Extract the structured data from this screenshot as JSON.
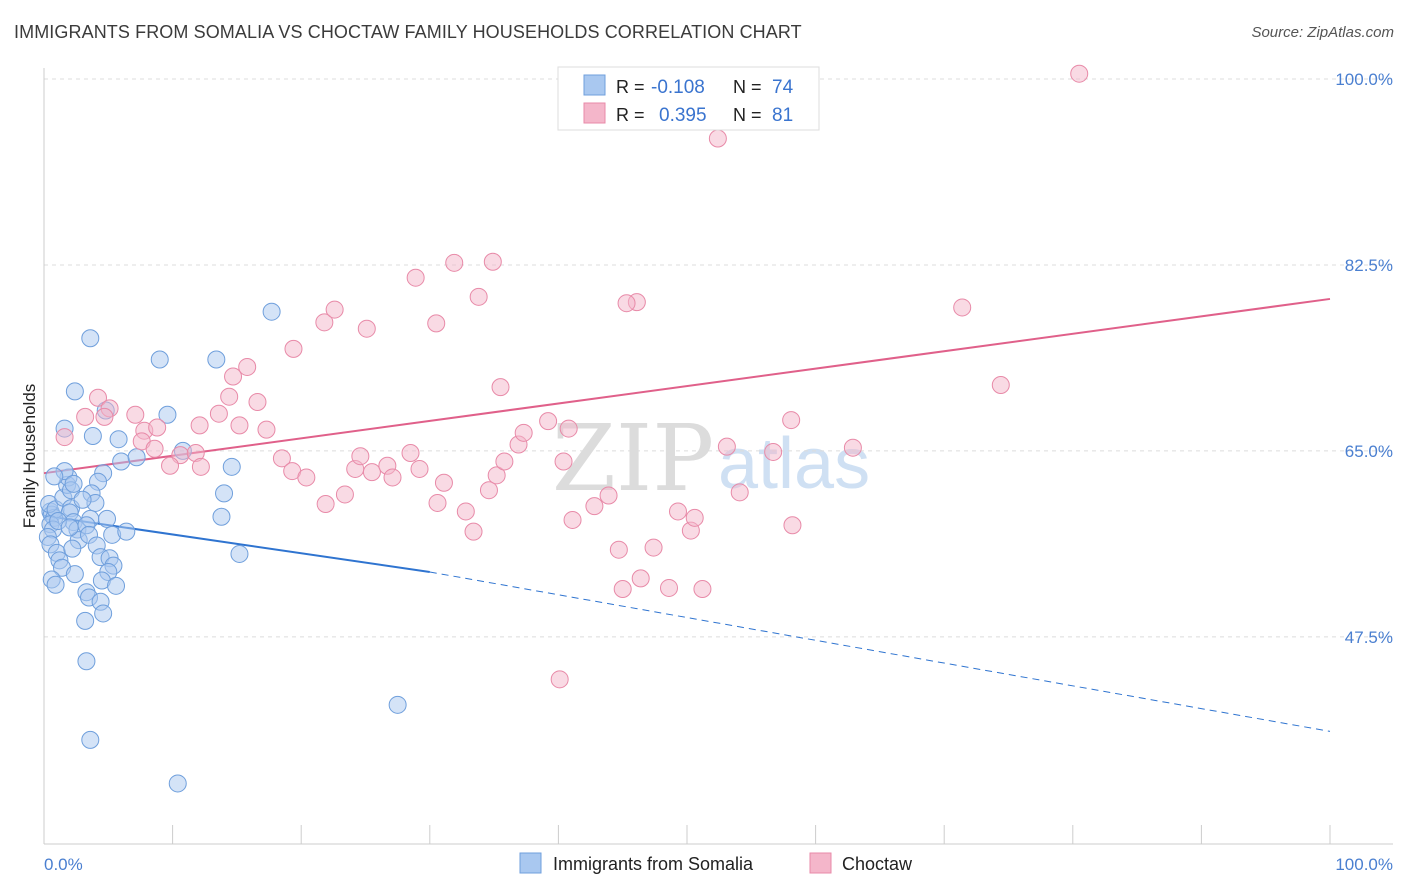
{
  "title": "IMMIGRANTS FROM SOMALIA VS CHOCTAW FAMILY HOUSEHOLDS CORRELATION CHART",
  "source": "Source: ZipAtlas.com",
  "watermark": {
    "zip": "ZIP",
    "atlas": "atlas"
  },
  "legend": {
    "r_label": "R =",
    "n_label": "N =",
    "rows": [
      {
        "r": "-0.108",
        "n": "74",
        "color": "#a9c8f0"
      },
      {
        "r": "0.395",
        "n": "81",
        "color": "#f4b6ca"
      }
    ]
  },
  "chart_data": {
    "type": "scatter",
    "xlabel": "",
    "ylabel": "Family Households",
    "xlim": [
      0,
      100
    ],
    "ylim": [
      28,
      100
    ],
    "x_tick_labels": [
      "0.0%",
      "100.0%"
    ],
    "y_ticks": [
      {
        "value": 100.0,
        "label": "100.0%"
      },
      {
        "value": 82.5,
        "label": "82.5%"
      },
      {
        "value": 65.0,
        "label": "65.0%"
      },
      {
        "value": 47.5,
        "label": "47.5%"
      }
    ],
    "grid": true,
    "series": [
      {
        "name": "Immigrants from Somalia",
        "color": "#a9c8f0",
        "stroke": "#6f9fdc",
        "line_color": "#2f74d0",
        "trend": {
          "x0": 0,
          "y0": 58.9,
          "x1": 30,
          "y1": 53.6,
          "dash_to_x": 100,
          "dash_to_y": 38.6
        },
        "points": [
          [
            0.5,
            59.3
          ],
          [
            0.6,
            59.0
          ],
          [
            0.8,
            58.7
          ],
          [
            0.4,
            60.0
          ],
          [
            0.9,
            59.5
          ],
          [
            0.5,
            58.1
          ],
          [
            0.7,
            57.6
          ],
          [
            0.3,
            56.9
          ],
          [
            0.5,
            56.2
          ],
          [
            1.0,
            55.4
          ],
          [
            1.2,
            54.7
          ],
          [
            1.4,
            54.0
          ],
          [
            0.6,
            52.9
          ],
          [
            0.9,
            52.4
          ],
          [
            1.5,
            60.6
          ],
          [
            1.8,
            61.8
          ],
          [
            1.9,
            62.5
          ],
          [
            1.6,
            63.1
          ],
          [
            2.1,
            61.3
          ],
          [
            2.3,
            61.9
          ],
          [
            2.1,
            59.6
          ],
          [
            2.0,
            59.2
          ],
          [
            2.3,
            58.3
          ],
          [
            2.6,
            57.6
          ],
          [
            2.7,
            56.6
          ],
          [
            2.2,
            55.8
          ],
          [
            2.4,
            53.4
          ],
          [
            1.6,
            67.1
          ],
          [
            2.4,
            70.6
          ],
          [
            3.6,
            75.6
          ],
          [
            4.8,
            68.8
          ],
          [
            3.8,
            66.4
          ],
          [
            6.0,
            64.0
          ],
          [
            7.2,
            64.4
          ],
          [
            5.8,
            66.1
          ],
          [
            4.6,
            62.9
          ],
          [
            4.2,
            62.1
          ],
          [
            3.7,
            61.0
          ],
          [
            4.0,
            60.1
          ],
          [
            3.6,
            58.6
          ],
          [
            3.3,
            58.0
          ],
          [
            3.5,
            57.1
          ],
          [
            4.9,
            58.6
          ],
          [
            5.3,
            57.1
          ],
          [
            6.4,
            57.4
          ],
          [
            4.1,
            56.1
          ],
          [
            4.4,
            55.0
          ],
          [
            5.1,
            54.9
          ],
          [
            5.4,
            54.2
          ],
          [
            5.0,
            53.6
          ],
          [
            4.5,
            52.8
          ],
          [
            5.6,
            52.3
          ],
          [
            3.3,
            51.7
          ],
          [
            3.5,
            51.2
          ],
          [
            4.4,
            50.8
          ],
          [
            4.6,
            49.7
          ],
          [
            3.2,
            49.0
          ],
          [
            3.3,
            45.2
          ],
          [
            3.6,
            37.8
          ],
          [
            9.0,
            73.6
          ],
          [
            9.6,
            68.4
          ],
          [
            10.8,
            65.0
          ],
          [
            13.4,
            73.6
          ],
          [
            14.6,
            63.5
          ],
          [
            14.0,
            61.0
          ],
          [
            13.8,
            58.8
          ],
          [
            15.2,
            55.3
          ],
          [
            17.7,
            78.1
          ],
          [
            27.5,
            41.1
          ],
          [
            10.4,
            33.7
          ],
          [
            0.8,
            62.6
          ],
          [
            1.1,
            58.4
          ],
          [
            2.0,
            57.8
          ],
          [
            3.0,
            60.4
          ]
        ]
      },
      {
        "name": "Choctaw",
        "color": "#f4b6ca",
        "stroke": "#e88aa8",
        "line_color": "#e0608a",
        "trend": {
          "x0": 0,
          "y0": 62.9,
          "x1": 100,
          "y1": 79.3
        },
        "points": [
          [
            1.6,
            66.3
          ],
          [
            3.2,
            68.2
          ],
          [
            4.2,
            70.0
          ],
          [
            5.1,
            69.0
          ],
          [
            4.7,
            68.2
          ],
          [
            7.1,
            68.4
          ],
          [
            7.8,
            66.9
          ],
          [
            8.8,
            67.2
          ],
          [
            7.6,
            65.9
          ],
          [
            8.6,
            65.2
          ],
          [
            10.6,
            64.6
          ],
          [
            9.8,
            63.6
          ],
          [
            11.8,
            64.8
          ],
          [
            12.2,
            63.5
          ],
          [
            13.6,
            68.5
          ],
          [
            14.4,
            70.1
          ],
          [
            15.2,
            67.4
          ],
          [
            16.6,
            69.6
          ],
          [
            17.3,
            67.0
          ],
          [
            18.5,
            64.3
          ],
          [
            19.3,
            63.1
          ],
          [
            20.4,
            62.5
          ],
          [
            21.9,
            60.0
          ],
          [
            23.4,
            60.9
          ],
          [
            24.2,
            63.3
          ],
          [
            24.6,
            64.5
          ],
          [
            25.5,
            63.0
          ],
          [
            26.7,
            63.6
          ],
          [
            27.1,
            62.5
          ],
          [
            28.5,
            64.8
          ],
          [
            29.2,
            63.3
          ],
          [
            30.6,
            60.1
          ],
          [
            31.1,
            62.0
          ],
          [
            32.8,
            59.3
          ],
          [
            33.4,
            57.4
          ],
          [
            34.6,
            61.3
          ],
          [
            35.2,
            62.7
          ],
          [
            35.8,
            64.0
          ],
          [
            36.9,
            65.6
          ],
          [
            37.3,
            66.7
          ],
          [
            39.2,
            67.8
          ],
          [
            40.4,
            64.0
          ],
          [
            41.1,
            58.5
          ],
          [
            42.8,
            59.8
          ],
          [
            43.9,
            60.8
          ],
          [
            44.7,
            55.7
          ],
          [
            45.0,
            52.0
          ],
          [
            46.4,
            53.0
          ],
          [
            47.4,
            55.9
          ],
          [
            48.6,
            52.1
          ],
          [
            49.3,
            59.3
          ],
          [
            50.3,
            57.5
          ],
          [
            50.6,
            58.7
          ],
          [
            51.2,
            52.0
          ],
          [
            53.1,
            65.4
          ],
          [
            56.7,
            64.9
          ],
          [
            54.1,
            61.1
          ],
          [
            58.2,
            58.0
          ],
          [
            62.9,
            65.3
          ],
          [
            12.1,
            67.4
          ],
          [
            14.7,
            72.0
          ],
          [
            19.4,
            74.6
          ],
          [
            15.8,
            72.9
          ],
          [
            21.8,
            77.1
          ],
          [
            25.1,
            76.5
          ],
          [
            30.5,
            77.0
          ],
          [
            33.8,
            79.5
          ],
          [
            35.5,
            71.0
          ],
          [
            40.8,
            67.1
          ],
          [
            46.1,
            79.0
          ],
          [
            22.6,
            78.3
          ],
          [
            28.9,
            81.3
          ],
          [
            31.9,
            82.7
          ],
          [
            34.9,
            82.8
          ],
          [
            40.1,
            43.5
          ],
          [
            45.3,
            78.9
          ],
          [
            52.4,
            94.4
          ],
          [
            58.1,
            67.9
          ],
          [
            71.4,
            78.5
          ],
          [
            74.4,
            71.2
          ],
          [
            80.5,
            100.5
          ]
        ]
      }
    ]
  }
}
